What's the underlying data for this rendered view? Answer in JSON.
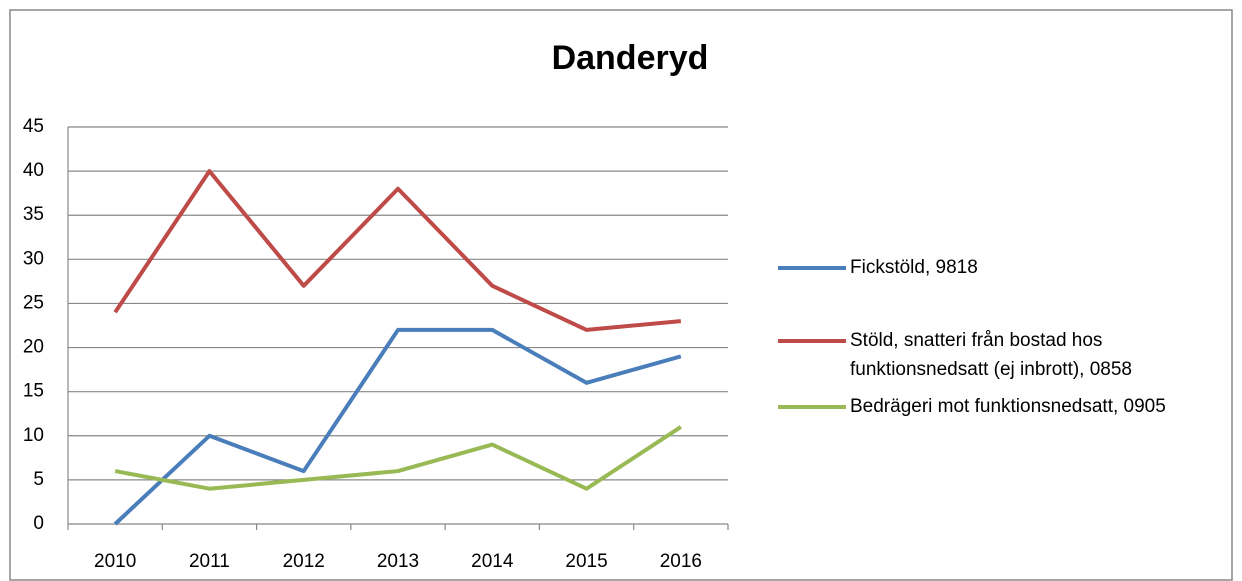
{
  "chart_data": {
    "type": "line",
    "title": "Danderyd",
    "categories": [
      "2010",
      "2011",
      "2012",
      "2013",
      "2014",
      "2015",
      "2016"
    ],
    "series": [
      {
        "name": "Fickstöld, 9818",
        "color": "#4a7ebb",
        "values": [
          0,
          10,
          6,
          22,
          22,
          16,
          19
        ]
      },
      {
        "name": "Stöld, snatteri från bostad hos funktionsnedsatt (ej inbrott), 0858",
        "color": "#be4b48",
        "values": [
          24,
          40,
          27,
          38,
          27,
          22,
          23
        ]
      },
      {
        "name": "Bedrägeri mot funktionsnedsatt, 0905",
        "color": "#98b954",
        "values": [
          6,
          4,
          5,
          6,
          9,
          4,
          11
        ]
      }
    ],
    "ylim": [
      0,
      45
    ],
    "yticks": [
      0,
      5,
      10,
      15,
      20,
      25,
      30,
      35,
      40,
      45
    ],
    "grid": true,
    "legend": "right"
  }
}
